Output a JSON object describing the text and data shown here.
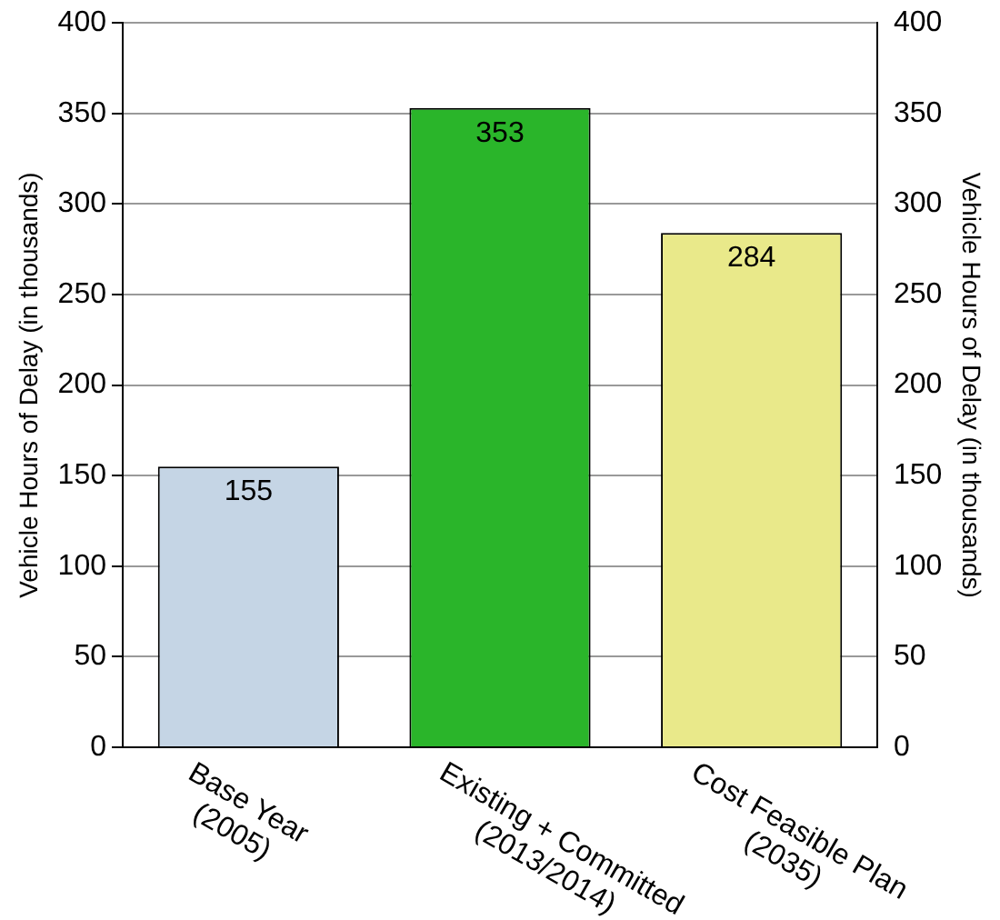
{
  "chart_data": {
    "type": "bar",
    "categories": [
      "Base Year\n(2005)",
      "Existing + Committed\n(2013/2014)",
      "Cost Feasible Plan\n(2035)"
    ],
    "values": [
      155,
      353,
      284
    ],
    "colors": [
      "#c5d5e5",
      "#2ab52a",
      "#e9e98a"
    ],
    "ylabel": "Vehicle Hours of Delay (in thousands)",
    "y2label": "Vehicle Hours of Delay (in thousands)",
    "ylim": [
      0,
      400
    ],
    "yticks": [
      0,
      50,
      100,
      150,
      200,
      250,
      300,
      350,
      400
    ],
    "y2lim": [
      0,
      400
    ],
    "y2ticks": [
      0,
      50,
      100,
      150,
      200,
      250,
      300,
      350,
      400
    ],
    "grid": "y",
    "data_labels": true,
    "legend": false
  }
}
